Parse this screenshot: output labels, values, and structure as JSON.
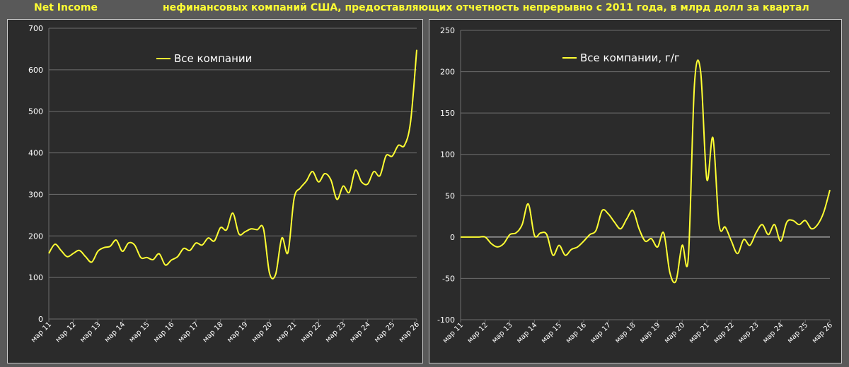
{
  "header": {
    "brand": "Net Income",
    "title": "нефинансовых компаний США, предоставляющих отчетность непрерывно с 2011 года, в млрд долл за квартал"
  },
  "colors": {
    "background": "#595959",
    "panel": "#2b2b2b",
    "line": "#ffff33",
    "accent_text": "#ffff33",
    "grid": "#6e6e6e"
  },
  "chart_data": [
    {
      "type": "line",
      "title": "",
      "xlabel": "",
      "ylabel": "",
      "ylim": [
        0,
        700
      ],
      "yticks": [
        "0",
        "100",
        "200",
        "300",
        "400",
        "500",
        "600",
        "700"
      ],
      "grid": "horizontal",
      "legend_position": "top-left",
      "xticks": [
        "мар 11",
        "мар 12",
        "мар 13",
        "мар 14",
        "мар 15",
        "мар 16",
        "мар 17",
        "мар 18",
        "мар 19",
        "мар 20",
        "мар 21",
        "мар 22",
        "мар 23",
        "мар 24",
        "мар 25",
        "мар 26"
      ],
      "series": [
        {
          "name": "Все компании",
          "x": [
            2011.0,
            2011.25,
            2011.5,
            2011.75,
            2012.0,
            2012.25,
            2012.5,
            2012.75,
            2013.0,
            2013.25,
            2013.5,
            2013.75,
            2014.0,
            2014.25,
            2014.5,
            2014.75,
            2015.0,
            2015.25,
            2015.5,
            2015.75,
            2016.0,
            2016.25,
            2016.5,
            2016.75,
            2017.0,
            2017.25,
            2017.5,
            2017.75,
            2018.0,
            2018.25,
            2018.5,
            2018.75,
            2019.0,
            2019.25,
            2019.5,
            2019.75,
            2020.0,
            2020.25,
            2020.5,
            2020.75,
            2021.0,
            2021.25,
            2021.5,
            2021.75,
            2022.0,
            2022.25,
            2022.5,
            2022.75,
            2023.0,
            2023.25,
            2023.5,
            2023.75,
            2024.0,
            2024.25,
            2024.5,
            2024.75,
            2025.0,
            2025.25,
            2025.5,
            2025.75,
            2026.0
          ],
          "values": [
            158,
            180,
            165,
            150,
            158,
            165,
            150,
            137,
            163,
            172,
            175,
            190,
            163,
            183,
            178,
            148,
            148,
            143,
            157,
            130,
            142,
            150,
            170,
            165,
            183,
            178,
            195,
            188,
            220,
            215,
            255,
            205,
            210,
            217,
            215,
            218,
            110,
            108,
            195,
            160,
            290,
            315,
            332,
            355,
            330,
            350,
            335,
            288,
            320,
            305,
            358,
            330,
            325,
            355,
            345,
            393,
            392,
            418,
            418,
            475,
            648
          ]
        }
      ]
    },
    {
      "type": "line",
      "title": "",
      "xlabel": "",
      "ylabel": "",
      "ylim": [
        -100,
        250
      ],
      "yticks": [
        "-100",
        "-50",
        "0",
        "50",
        "100",
        "150",
        "200",
        "250"
      ],
      "grid": "horizontal",
      "legend_position": "top-left",
      "xticks": [
        "мар 11",
        "мар 12",
        "мар 13",
        "мар 14",
        "мар 15",
        "мар 16",
        "мар 17",
        "мар 18",
        "мар 19",
        "мар 20",
        "мар 21",
        "мар 22",
        "мар 23",
        "мар 24",
        "мар 25",
        "мар 26"
      ],
      "series": [
        {
          "name": "Все компании, г/г",
          "x": [
            2011.0,
            2011.25,
            2011.5,
            2011.75,
            2012.0,
            2012.25,
            2012.5,
            2012.75,
            2013.0,
            2013.25,
            2013.5,
            2013.75,
            2014.0,
            2014.25,
            2014.5,
            2014.75,
            2015.0,
            2015.25,
            2015.5,
            2015.75,
            2016.0,
            2016.25,
            2016.5,
            2016.75,
            2017.0,
            2017.25,
            2017.5,
            2017.75,
            2018.0,
            2018.25,
            2018.5,
            2018.75,
            2019.0,
            2019.25,
            2019.5,
            2019.75,
            2020.0,
            2020.25,
            2020.5,
            2020.75,
            2021.0,
            2021.25,
            2021.5,
            2021.75,
            2022.0,
            2022.25,
            2022.5,
            2022.75,
            2023.0,
            2023.25,
            2023.5,
            2023.75,
            2024.0,
            2024.25,
            2024.5,
            2024.75,
            2025.0,
            2025.25,
            2025.5,
            2025.75,
            2026.0
          ],
          "values": [
            0,
            0,
            0,
            0,
            0,
            -8,
            -12,
            -8,
            3,
            5,
            15,
            40,
            2,
            5,
            3,
            -22,
            -10,
            -22,
            -15,
            -12,
            -5,
            3,
            8,
            32,
            28,
            18,
            10,
            22,
            32,
            10,
            -5,
            -2,
            -12,
            5,
            -43,
            -53,
            -10,
            -25,
            185,
            200,
            70,
            120,
            15,
            12,
            -5,
            -20,
            -3,
            -10,
            5,
            15,
            3,
            15,
            -5,
            18,
            20,
            15,
            20,
            10,
            15,
            30,
            57
          ]
        }
      ]
    }
  ]
}
